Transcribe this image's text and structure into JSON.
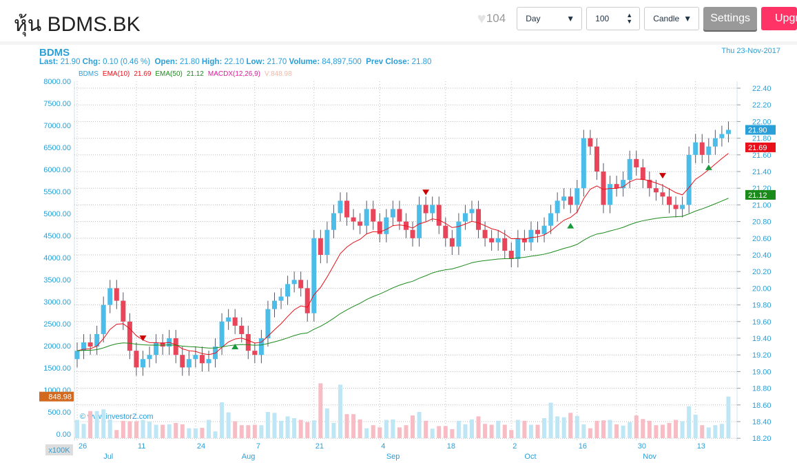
{
  "header": {
    "title": "หุ้น BDMS.BK",
    "likes": "104",
    "period": "Day",
    "count": "100",
    "chart_type": "Candle",
    "settings": "Settings",
    "upgrade": "Upgrade"
  },
  "info": {
    "symbol": "BDMS",
    "last_l": "Last:",
    "last": "21.90",
    "chg_l": "Chg:",
    "chg": "0.10 (0.46 %)",
    "open_l": "Open:",
    "open": "21.80",
    "high_l": "High:",
    "high": "22.10",
    "low_l": "Low:",
    "low": "21.70",
    "vol_l": "Volume:",
    "vol": "84,897,500",
    "prev_l": "Prev Close:",
    "prev": "21.80",
    "date": "Thu 23-Nov-2017"
  },
  "legend": {
    "sym": "BDMS",
    "ema10": "EMA(10)",
    "ema10v": "21.69",
    "ema50": "EMA(50)",
    "ema50v": "21.12",
    "macd": "MACDX(12,26,9)",
    "vol": "V:848.98"
  },
  "colors": {
    "up": "#4cbde9",
    "down": "#e8455a",
    "ema10": "#e8101a",
    "ema50": "#1a8a1a",
    "accent": "#2a9fd8"
  },
  "chart_data": {
    "type": "candlestick",
    "price_axis": {
      "min": 18.2,
      "max": 22.4,
      "step": 0.2
    },
    "volume_axis": {
      "min": 0,
      "max": 8000,
      "step": 500,
      "unit": "x100K"
    },
    "badges": {
      "last": "21.90",
      "ema10": "21.69",
      "ema50": "21.12",
      "volume": "848.98"
    },
    "watermark": "© www.investorZ.com",
    "day_ticks": [
      {
        "i": 0,
        "label": "26"
      },
      {
        "i": 9,
        "label": "11"
      },
      {
        "i": 18,
        "label": "24"
      },
      {
        "i": 27,
        "label": "7"
      },
      {
        "i": 36,
        "label": "21"
      },
      {
        "i": 46,
        "label": "4"
      },
      {
        "i": 56,
        "label": "18"
      },
      {
        "i": 66,
        "label": "2"
      },
      {
        "i": 76,
        "label": "16"
      },
      {
        "i": 85,
        "label": "30"
      },
      {
        "i": 94,
        "label": "13"
      }
    ],
    "month_ticks": [
      {
        "i": 4,
        "label": "Jul"
      },
      {
        "i": 25,
        "label": "Aug"
      },
      {
        "i": 47,
        "label": "Sep"
      },
      {
        "i": 68,
        "label": "Oct"
      },
      {
        "i": 86,
        "label": "Nov"
      }
    ],
    "closes": [
      19.25,
      19.35,
      19.3,
      19.45,
      19.8,
      20.0,
      19.85,
      19.6,
      19.25,
      19.05,
      19.15,
      19.2,
      19.35,
      19.3,
      19.4,
      19.2,
      19.05,
      19.15,
      19.2,
      19.1,
      19.15,
      19.3,
      19.6,
      19.65,
      19.55,
      19.45,
      19.25,
      19.2,
      19.4,
      19.75,
      19.85,
      19.9,
      20.05,
      20.1,
      20.0,
      19.7,
      20.6,
      20.4,
      20.7,
      20.9,
      21.05,
      20.85,
      20.8,
      20.75,
      20.95,
      20.8,
      20.65,
      20.85,
      20.95,
      20.8,
      20.7,
      20.6,
      21.0,
      20.9,
      21.0,
      20.75,
      20.6,
      20.5,
      20.8,
      20.9,
      20.95,
      20.7,
      20.6,
      20.55,
      20.6,
      20.45,
      20.35,
      20.6,
      20.55,
      20.7,
      20.65,
      20.75,
      20.9,
      21.05,
      21.1,
      21.0,
      21.2,
      21.8,
      21.7,
      21.4,
      21.0,
      21.25,
      21.2,
      21.3,
      21.55,
      21.45,
      21.3,
      21.2,
      21.15,
      21.1,
      21.0,
      20.95,
      21.0,
      21.6,
      21.75,
      21.6,
      21.7,
      21.8,
      21.85,
      21.9
    ],
    "volumes": [
      320,
      230,
      520,
      520,
      560,
      330,
      90,
      300,
      290,
      290,
      320,
      280,
      210,
      210,
      220,
      250,
      220,
      130,
      130,
      140,
      320,
      60,
      720,
      490,
      290,
      200,
      200,
      210,
      200,
      500,
      480,
      300,
      400,
      360,
      320,
      270,
      310,
      1150,
      580,
      250,
      1120,
      450,
      450,
      330,
      130,
      200,
      150,
      320,
      330,
      150,
      200,
      420,
      500,
      300,
      120,
      180,
      180,
      110,
      300,
      220,
      330,
      400,
      230,
      210,
      300,
      210,
      90,
      320,
      300,
      210,
      210,
      360,
      710,
      400,
      380,
      480,
      410,
      220,
      130,
      300,
      310,
      320,
      220,
      190,
      270,
      420,
      340,
      300,
      200,
      210,
      250,
      320,
      290,
      630,
      440,
      200,
      150,
      200,
      230,
      850
    ],
    "markers": [
      {
        "i": 10,
        "type": "sell"
      },
      {
        "i": 24,
        "type": "buy"
      },
      {
        "i": 53,
        "type": "sell"
      },
      {
        "i": 75,
        "type": "buy"
      },
      {
        "i": 89,
        "type": "sell"
      },
      {
        "i": 96,
        "type": "buy"
      }
    ]
  }
}
